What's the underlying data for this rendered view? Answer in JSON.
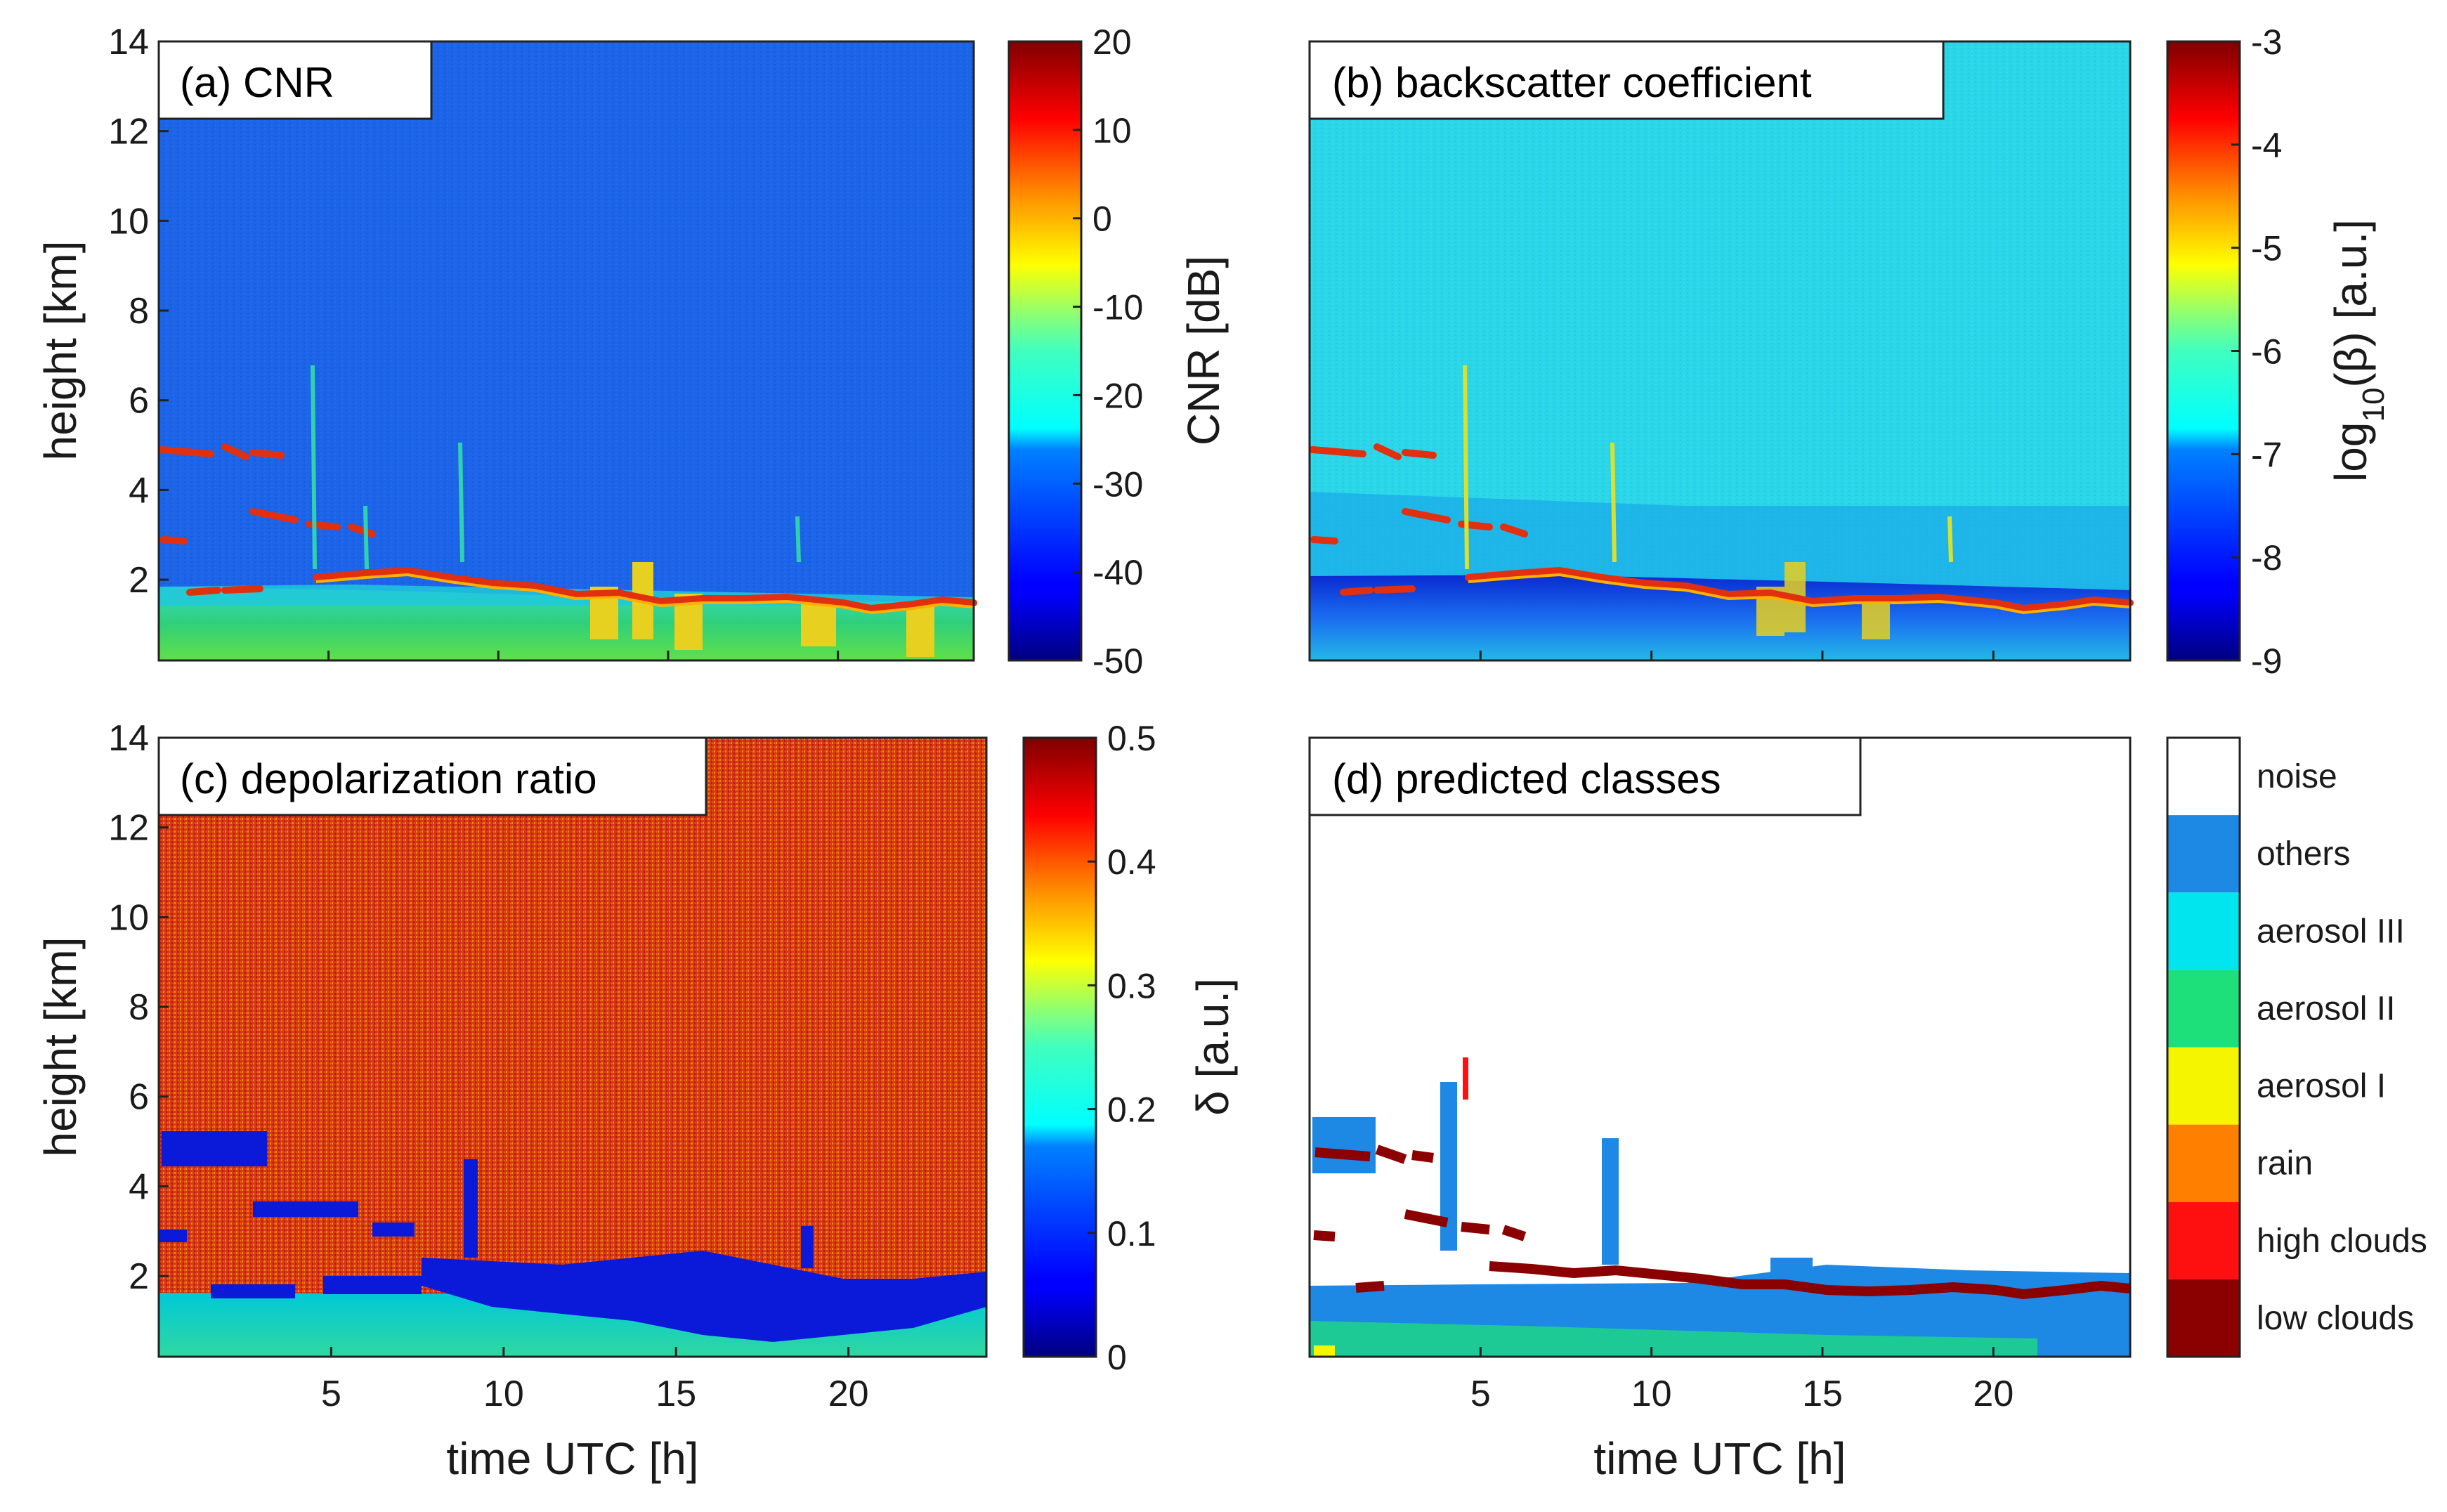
{
  "chart_data": [
    {
      "type": "heatmap",
      "title": "(a) CNR",
      "xlim": [
        0,
        24
      ],
      "ylim": [
        0.2,
        14
      ],
      "xticks": [
        5,
        10,
        15,
        20
      ],
      "yticks": [
        2,
        4,
        6,
        8,
        10,
        12,
        14
      ],
      "xlabel": "",
      "ylabel": "height [km]",
      "colorbar": {
        "label": "CNR [dB]",
        "range": [
          -50,
          20
        ],
        "ticks": [
          -50,
          -40,
          -30,
          -20,
          -10,
          0,
          10,
          20
        ]
      }
    },
    {
      "type": "heatmap",
      "title": "(b) backscatter coefficient",
      "xlim": [
        0,
        24
      ],
      "ylim": [
        0.2,
        14
      ],
      "xticks": [
        5,
        10,
        15,
        20
      ],
      "yticks": [
        2,
        4,
        6,
        8,
        10,
        12,
        14
      ],
      "xlabel": "",
      "ylabel": "",
      "colorbar": {
        "label": "log10(β) [a.u.]",
        "label_main": "log",
        "label_sub": "10",
        "label_rest": "(β) [a.u.]",
        "range": [
          -9,
          -3
        ],
        "ticks": [
          -9,
          -8,
          -7,
          -6,
          -5,
          -4,
          -3
        ]
      }
    },
    {
      "type": "heatmap",
      "title": "(c) depolarization ratio",
      "xlim": [
        0,
        24
      ],
      "ylim": [
        0.2,
        14
      ],
      "xticks": [
        5,
        10,
        15,
        20
      ],
      "yticks": [
        2,
        4,
        6,
        8,
        10,
        12,
        14
      ],
      "xlabel": "time UTC [h]",
      "ylabel": "height [km]",
      "colorbar": {
        "label": "δ [a.u.]",
        "range": [
          0,
          0.5
        ],
        "ticks": [
          0,
          0.1,
          0.2,
          0.3,
          0.4,
          0.5
        ]
      }
    },
    {
      "type": "heatmap",
      "title": "(d) predicted classes",
      "xlim": [
        0,
        24
      ],
      "ylim": [
        0.2,
        14
      ],
      "xticks": [
        5,
        10,
        15,
        20
      ],
      "yticks": [
        2,
        4,
        6,
        8,
        10,
        12,
        14
      ],
      "xlabel": "time UTC [h]",
      "ylabel": "",
      "classes": [
        {
          "name": "noise",
          "color": "#ffffff"
        },
        {
          "name": "others",
          "color": "#1e88e5"
        },
        {
          "name": "aerosol III",
          "color": "#00e5ee"
        },
        {
          "name": "aerosol II",
          "color": "#1ee07a"
        },
        {
          "name": "aerosol I",
          "color": "#f5f500"
        },
        {
          "name": "rain",
          "color": "#ff8000"
        },
        {
          "name": "high clouds",
          "color": "#ff1010"
        },
        {
          "name": "low clouds",
          "color": "#8b0000"
        }
      ]
    }
  ],
  "colors": {
    "cnr_background": "#1a62e6",
    "backscatter_background": "#27d4e6",
    "depol_background": "#d83a16",
    "cloud_layer": "#8b0000",
    "boundary_layer": "#2fd07a"
  }
}
